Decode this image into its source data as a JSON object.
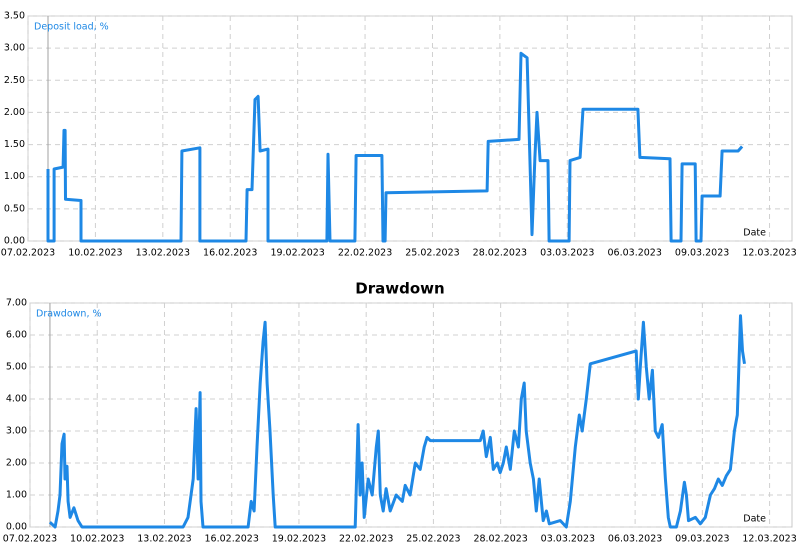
{
  "chart_data": [
    {
      "type": "line",
      "y_label": "Deposit load, %",
      "x_label": "Date",
      "color": "#1e88e5",
      "grid": true,
      "xlim": [
        0,
        34
      ],
      "ylim": [
        0,
        3.5
      ],
      "xticks": [
        {
          "value": 0,
          "label": "07.02.2023"
        },
        {
          "value": 3,
          "label": "10.02.2023"
        },
        {
          "value": 6,
          "label": "13.02.2023"
        },
        {
          "value": 9,
          "label": "16.02.2023"
        },
        {
          "value": 12,
          "label": "19.02.2023"
        },
        {
          "value": 15,
          "label": "22.02.2023"
        },
        {
          "value": 18,
          "label": "25.02.2023"
        },
        {
          "value": 21,
          "label": "28.02.2023"
        },
        {
          "value": 24,
          "label": "03.03.2023"
        },
        {
          "value": 27,
          "label": "06.03.2023"
        },
        {
          "value": 30,
          "label": "09.03.2023"
        },
        {
          "value": 33,
          "label": "12.03.2023"
        }
      ],
      "yticks": [
        {
          "value": 0,
          "label": "0.00"
        },
        {
          "value": 0.5,
          "label": "0.50"
        },
        {
          "value": 1,
          "label": "1.00"
        },
        {
          "value": 1.5,
          "label": "1.50"
        },
        {
          "value": 2,
          "label": "2.00"
        },
        {
          "value": 2.5,
          "label": "2.50"
        },
        {
          "value": 3,
          "label": "3.00"
        },
        {
          "value": 3.5,
          "label": "3.50"
        }
      ],
      "x": [
        0.89,
        0.89,
        1.16,
        1.16,
        1.56,
        1.6,
        1.65,
        1.67,
        2.36,
        2.36,
        6.81,
        6.85,
        7.65,
        7.65,
        9.7,
        9.75,
        9.97,
        10.1,
        10.24,
        10.33,
        10.68,
        10.68,
        13.3,
        13.35,
        13.44,
        14.55,
        14.6,
        15.75,
        15.8,
        15.89,
        15.93,
        20.43,
        20.48,
        21.85,
        21.94,
        22.21,
        22.43,
        22.56,
        22.65,
        22.79,
        23.14,
        23.19,
        24.08,
        24.12,
        24.57,
        24.7,
        27.14,
        27.23,
        28.57,
        28.62,
        29.06,
        29.11,
        29.69,
        29.73,
        29.95,
        30.0,
        30.8,
        30.89,
        31.6,
        31.78
      ],
      "values": [
        1.12,
        0,
        0,
        1.12,
        1.15,
        1.72,
        1.72,
        0.65,
        0.63,
        0,
        0,
        1.4,
        1.45,
        0,
        0,
        0.8,
        0.8,
        2.2,
        2.25,
        1.4,
        1.43,
        0,
        0,
        1.35,
        0,
        0,
        1.33,
        1.33,
        0,
        0,
        0.75,
        0.78,
        1.55,
        1.58,
        2.92,
        2.85,
        0.1,
        1.3,
        2.0,
        1.25,
        1.25,
        0,
        0,
        1.25,
        1.3,
        2.05,
        2.05,
        1.3,
        1.28,
        0,
        0,
        1.2,
        1.2,
        0,
        0,
        0.7,
        0.7,
        1.4,
        1.4,
        1.47
      ]
    },
    {
      "type": "line",
      "title": "Drawdown",
      "y_label": "Drawdown, %",
      "x_label": "Date",
      "color": "#1e88e5",
      "grid": true,
      "xlim": [
        0,
        34
      ],
      "ylim": [
        0,
        7
      ],
      "xticks": [
        {
          "value": 0,
          "label": "07.02.2023"
        },
        {
          "value": 3,
          "label": "10.02.2023"
        },
        {
          "value": 6,
          "label": "13.02.2023"
        },
        {
          "value": 9,
          "label": "16.02.2023"
        },
        {
          "value": 12,
          "label": "19.02.2023"
        },
        {
          "value": 15,
          "label": "22.02.2023"
        },
        {
          "value": 18,
          "label": "25.02.2023"
        },
        {
          "value": 21,
          "label": "28.02.2023"
        },
        {
          "value": 24,
          "label": "03.03.2023"
        },
        {
          "value": 27,
          "label": "06.03.2023"
        },
        {
          "value": 30,
          "label": "09.03.2023"
        },
        {
          "value": 33,
          "label": "12.03.2023"
        }
      ],
      "yticks": [
        {
          "value": 0,
          "label": "0.00"
        },
        {
          "value": 1,
          "label": "1.00"
        },
        {
          "value": 2,
          "label": "2.00"
        },
        {
          "value": 3,
          "label": "3.00"
        },
        {
          "value": 4,
          "label": "4.00"
        },
        {
          "value": 5,
          "label": "5.00"
        },
        {
          "value": 6,
          "label": "6.00"
        },
        {
          "value": 7,
          "label": "7.00"
        }
      ],
      "x": [
        0.89,
        1.12,
        1.25,
        1.34,
        1.43,
        1.52,
        1.56,
        1.65,
        1.7,
        1.79,
        1.96,
        2.14,
        2.32,
        6.83,
        7.05,
        7.28,
        7.41,
        7.5,
        7.59,
        7.63,
        7.72,
        9.73,
        9.87,
        10.0,
        10.13,
        10.27,
        10.4,
        10.49,
        10.58,
        10.71,
        10.85,
        10.94,
        14.51,
        14.64,
        14.73,
        14.82,
        14.91,
        15.09,
        15.27,
        15.45,
        15.54,
        15.63,
        15.76,
        15.89,
        16.07,
        16.34,
        16.61,
        16.74,
        16.96,
        17.19,
        17.41,
        17.59,
        17.72,
        17.86,
        20.09,
        20.22,
        20.36,
        20.54,
        20.67,
        20.85,
        20.98,
        21.12,
        21.25,
        21.43,
        21.61,
        21.79,
        21.92,
        22.05,
        22.14,
        22.32,
        22.46,
        22.59,
        22.72,
        22.9,
        23.04,
        23.17,
        23.66,
        23.93,
        24.11,
        24.33,
        24.51,
        24.64,
        24.82,
        25.0,
        27.05,
        27.14,
        27.23,
        27.37,
        27.5,
        27.63,
        27.77,
        27.9,
        28.04,
        28.21,
        28.35,
        28.48,
        28.57,
        28.84,
        29.02,
        29.2,
        29.29,
        29.38,
        29.69,
        29.91,
        30.13,
        30.36,
        30.54,
        30.71,
        30.89,
        31.07,
        31.25,
        31.43,
        31.56,
        31.7,
        31.79,
        31.88
      ],
      "values": [
        0.15,
        0,
        0.5,
        1.0,
        2.6,
        2.9,
        1.5,
        1.9,
        0.8,
        0.3,
        0.6,
        0.2,
        0,
        0,
        0.3,
        1.5,
        3.7,
        1.5,
        4.2,
        0.8,
        0,
        0,
        0.8,
        0.5,
        2.5,
        4.5,
        5.8,
        6.4,
        4.5,
        3.0,
        1.0,
        0,
        0,
        3.2,
        1.0,
        2.0,
        0.3,
        1.5,
        1.0,
        2.5,
        3.0,
        1.0,
        0.5,
        1.2,
        0.5,
        1.0,
        0.8,
        1.3,
        1.0,
        2.0,
        1.8,
        2.5,
        2.8,
        2.7,
        2.7,
        3.0,
        2.2,
        2.8,
        1.8,
        2.0,
        1.7,
        2.0,
        2.5,
        1.8,
        3.0,
        2.5,
        4.0,
        4.5,
        3.0,
        2.0,
        1.5,
        0.5,
        1.5,
        0.2,
        0.5,
        0.1,
        0.2,
        0,
        0.8,
        2.5,
        3.5,
        3.0,
        4.0,
        5.1,
        5.5,
        4.0,
        5.0,
        6.4,
        5.0,
        4.0,
        4.9,
        3.0,
        2.8,
        3.2,
        1.5,
        0.3,
        0,
        0,
        0.5,
        1.4,
        1.0,
        0.2,
        0.3,
        0.1,
        0.3,
        1.0,
        1.2,
        1.5,
        1.3,
        1.6,
        1.8,
        3.0,
        3.5,
        6.6,
        5.5,
        5.1
      ]
    }
  ]
}
